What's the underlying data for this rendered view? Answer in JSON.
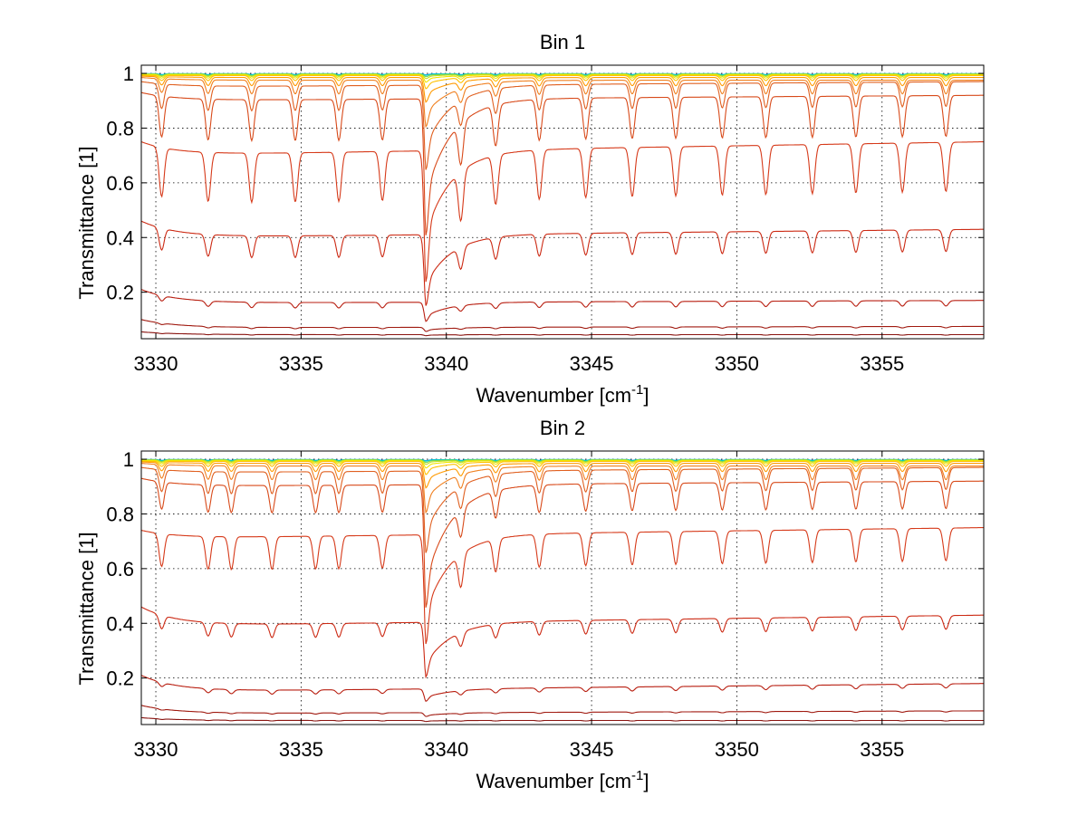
{
  "chart_data": [
    {
      "type": "line",
      "title": "Bin 1",
      "xlabel": "Wavenumber [cm",
      "xlabel_sup": "-1",
      "xlabel_end": "]",
      "ylabel": "Transmittance [1]",
      "xlim": [
        3329.5,
        3358.5
      ],
      "ylim": [
        0.03,
        1.03
      ],
      "xticks": [
        3330,
        3335,
        3340,
        3345,
        3350,
        3355
      ],
      "yticks": [
        0.2,
        0.4,
        0.6,
        0.8,
        1
      ],
      "grid": true,
      "line_periods": [
        {
          "base": 0.999,
          "depth": 0.003,
          "color": "#2a9df4"
        },
        {
          "base": 0.999,
          "depth": 0.004,
          "color": "#00d0c8"
        },
        {
          "base": 0.998,
          "depth": 0.006,
          "color": "#7ad651"
        },
        {
          "base": 0.997,
          "depth": 0.008,
          "color": "#c8e020"
        },
        {
          "base": 0.995,
          "depth": 0.012,
          "color": "#f2e600"
        },
        {
          "base": 0.992,
          "depth": 0.018,
          "color": "#ffc000"
        },
        {
          "base": 0.985,
          "depth": 0.03,
          "color": "#ff9a00"
        },
        {
          "base": 0.975,
          "depth": 0.05,
          "color": "#f08020"
        },
        {
          "base": 0.95,
          "depth": 0.09,
          "color": "#e06020"
        },
        {
          "base": 0.9,
          "depth": 0.15,
          "color": "#d84a1a"
        },
        {
          "base": 0.7,
          "depth": 0.18,
          "color": "#d63a1a"
        },
        {
          "base": 0.4,
          "depth": 0.08,
          "color": "#cc2a14"
        },
        {
          "base": 0.16,
          "depth": 0.02,
          "color": "#b81e10"
        },
        {
          "base": 0.07,
          "depth": 0.005,
          "color": "#a01a10"
        },
        {
          "base": 0.045,
          "depth": 0.002,
          "color": "#8a1410"
        }
      ],
      "line_start_rise": [
        0,
        0,
        0,
        0,
        0,
        0,
        0.005,
        0.01,
        0.02,
        0.03,
        0.05,
        0.06,
        0.05,
        0.03,
        0.01
      ],
      "line_end_drift": [
        0,
        0,
        0,
        0,
        0,
        0,
        0,
        0,
        0.02,
        0.02,
        0.05,
        0.03,
        0.01,
        0.005,
        0.0
      ],
      "line_deep_dip": [
        0.001,
        0.002,
        0.004,
        0.008,
        0.015,
        0.03,
        0.06,
        0.12,
        0.22,
        0.35,
        0.3,
        0.18,
        0.05,
        0.01,
        0.002
      ],
      "dip_centers": [
        3330.2,
        3331.8,
        3333.3,
        3334.8,
        3336.3,
        3337.8,
        3339.3,
        3340.5,
        3341.7,
        3343.2,
        3344.8,
        3346.4,
        3347.9,
        3349.5,
        3351.0,
        3352.6,
        3354.1,
        3355.7,
        3357.2
      ]
    },
    {
      "type": "line",
      "title": "Bin 2",
      "xlabel": "Wavenumber [cm",
      "xlabel_sup": "-1",
      "xlabel_end": "]",
      "ylabel": "Transmittance [1]",
      "xlim": [
        3329.5,
        3358.5
      ],
      "ylim": [
        0.03,
        1.03
      ],
      "xticks": [
        3330,
        3335,
        3340,
        3345,
        3350,
        3355
      ],
      "yticks": [
        0.2,
        0.4,
        0.6,
        0.8,
        1
      ],
      "grid": true,
      "line_periods": [
        {
          "base": 0.999,
          "depth": 0.003,
          "color": "#2a9df4"
        },
        {
          "base": 0.999,
          "depth": 0.004,
          "color": "#00d0c8"
        },
        {
          "base": 0.998,
          "depth": 0.006,
          "color": "#7ad651"
        },
        {
          "base": 0.997,
          "depth": 0.008,
          "color": "#c8e020"
        },
        {
          "base": 0.995,
          "depth": 0.012,
          "color": "#f2e600"
        },
        {
          "base": 0.992,
          "depth": 0.018,
          "color": "#ffc000"
        },
        {
          "base": 0.985,
          "depth": 0.03,
          "color": "#ff9a00"
        },
        {
          "base": 0.975,
          "depth": 0.05,
          "color": "#f08020"
        },
        {
          "base": 0.95,
          "depth": 0.08,
          "color": "#e06020"
        },
        {
          "base": 0.9,
          "depth": 0.1,
          "color": "#d84a1a"
        },
        {
          "base": 0.71,
          "depth": 0.12,
          "color": "#d63a1a"
        },
        {
          "base": 0.39,
          "depth": 0.05,
          "color": "#cc2a14"
        },
        {
          "base": 0.15,
          "depth": 0.015,
          "color": "#b81e10"
        },
        {
          "base": 0.07,
          "depth": 0.004,
          "color": "#a01a10"
        },
        {
          "base": 0.045,
          "depth": 0.002,
          "color": "#8a1410"
        }
      ],
      "line_start_rise": [
        0,
        0,
        0,
        0,
        0,
        0,
        0.005,
        0.01,
        0.02,
        0.03,
        0.03,
        0.07,
        0.06,
        0.03,
        0.01
      ],
      "line_end_drift": [
        0,
        0,
        0,
        0,
        0,
        0,
        0,
        0,
        0.02,
        0.02,
        0.04,
        0.04,
        0.03,
        0.01,
        0.0
      ],
      "line_deep_dip": [
        0.001,
        0.002,
        0.004,
        0.008,
        0.015,
        0.03,
        0.06,
        0.12,
        0.22,
        0.35,
        0.28,
        0.15,
        0.03,
        0.01,
        0.002
      ],
      "dip_centers": [
        3330.2,
        3331.8,
        3332.6,
        3334.0,
        3335.5,
        3336.3,
        3337.8,
        3339.3,
        3340.5,
        3341.7,
        3343.2,
        3344.8,
        3346.4,
        3347.9,
        3349.5,
        3351.0,
        3352.6,
        3354.1,
        3355.7,
        3357.2
      ]
    }
  ]
}
